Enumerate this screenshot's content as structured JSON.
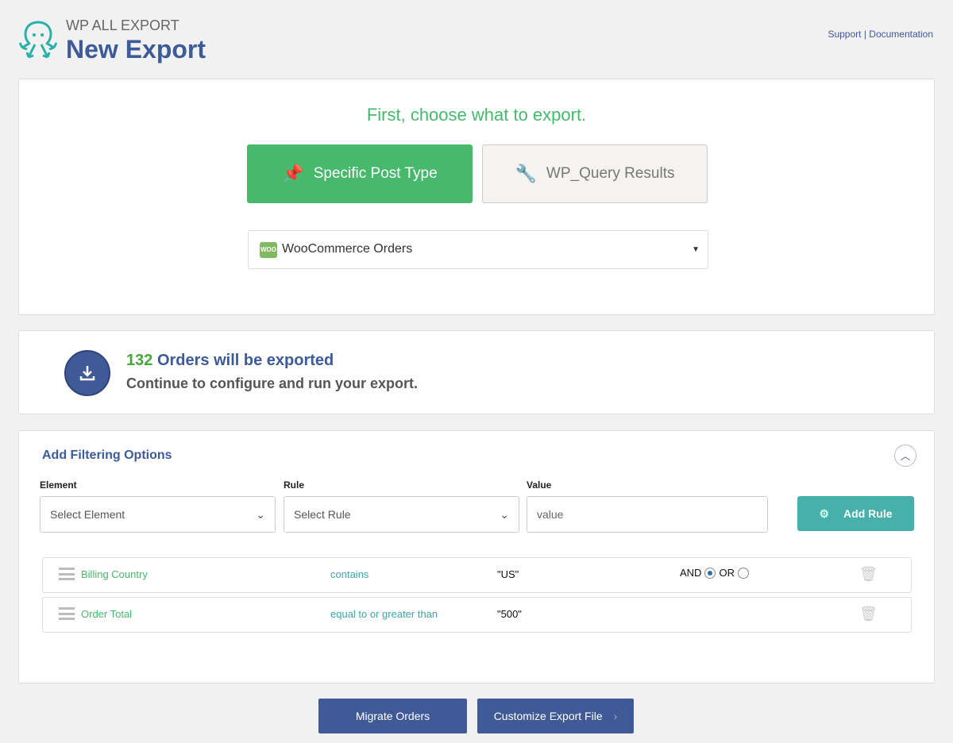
{
  "header": {
    "brand": "WP ALL EXPORT",
    "title": "New Export",
    "support": "Support",
    "separator": "|",
    "documentation": "Documentation"
  },
  "choose": {
    "heading": "First, choose what to export.",
    "specific_label": "Specific Post Type",
    "wpquery_label": "WP_Query Results",
    "post_type": "WooCommerce Orders",
    "woo_badge": "WOO"
  },
  "summary": {
    "count": "132",
    "count_text": "Orders will be exported",
    "subtext": "Continue to configure and run your export."
  },
  "filter": {
    "title": "Add Filtering Options",
    "element_label": "Element",
    "rule_label": "Rule",
    "value_label": "Value",
    "element_value": "Select Element",
    "rule_value": "Select Rule",
    "value_placeholder": "value",
    "add_rule": "Add Rule",
    "rules": [
      {
        "element": "Billing Country",
        "rule": "contains",
        "value": "\"US\"",
        "and": "AND",
        "or": "OR",
        "selected": "AND"
      },
      {
        "element": "Order Total",
        "rule": "equal to or greater than",
        "value": "\"500\""
      }
    ]
  },
  "footer": {
    "migrate": "Migrate Orders",
    "customize": "Customize Export File"
  },
  "colors": {
    "brand": "#3d5a99",
    "green": "#46b96d",
    "teal": "#48b0ab"
  }
}
